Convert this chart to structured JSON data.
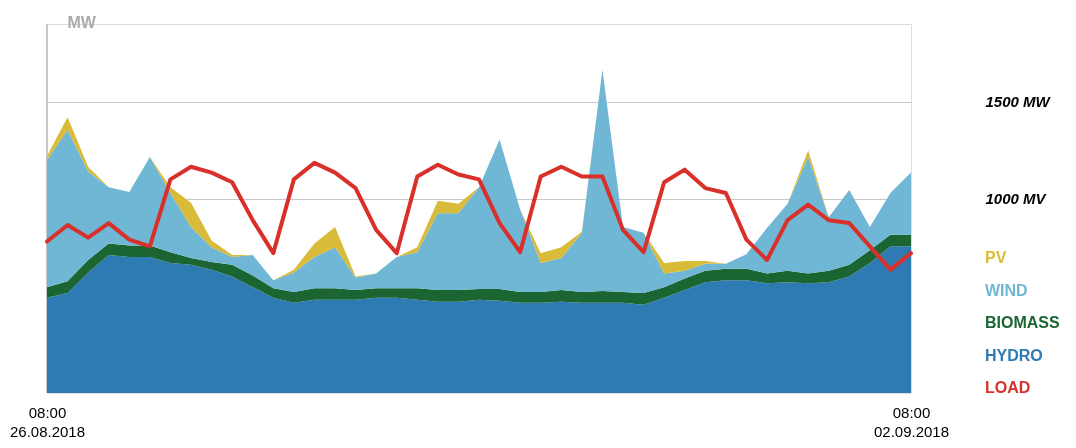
{
  "chart_data": {
    "type": "area",
    "stacked": true,
    "ylabel": "MW",
    "x": [
      "2018-08-26T08:00",
      "2018-08-26T12:00",
      "2018-08-26T16:00",
      "2018-08-26T20:00",
      "2018-08-27T00:00",
      "2018-08-27T04:00",
      "2018-08-27T08:00",
      "2018-08-27T12:00",
      "2018-08-27T16:00",
      "2018-08-27T20:00",
      "2018-08-28T00:00",
      "2018-08-28T04:00",
      "2018-08-28T08:00",
      "2018-08-28T12:00",
      "2018-08-28T16:00",
      "2018-08-28T20:00",
      "2018-08-29T00:00",
      "2018-08-29T04:00",
      "2018-08-29T08:00",
      "2018-08-29T12:00",
      "2018-08-29T16:00",
      "2018-08-29T20:00",
      "2018-08-30T00:00",
      "2018-08-30T04:00",
      "2018-08-30T08:00",
      "2018-08-30T12:00",
      "2018-08-30T16:00",
      "2018-08-30T20:00",
      "2018-08-31T00:00",
      "2018-08-31T04:00",
      "2018-08-31T08:00",
      "2018-08-31T12:00",
      "2018-08-31T16:00",
      "2018-08-31T20:00",
      "2018-09-01T00:00",
      "2018-09-01T04:00",
      "2018-09-01T08:00",
      "2018-09-01T12:00",
      "2018-09-01T16:00",
      "2018-09-01T20:00",
      "2018-09-02T00:00",
      "2018-09-02T04:00",
      "2018-09-02T08:00"
    ],
    "xlim": [
      "2018-08-26T08:00",
      "2018-09-02T08:00"
    ],
    "xticks": [
      {
        "value": "2018-08-26T08:00",
        "label": "08:00\n26.08.2018"
      },
      {
        "value": "2018-09-02T08:00",
        "label": "08:00\n02.09.2018"
      }
    ],
    "ylim": [
      0,
      1900
    ],
    "yticks": [
      {
        "value": 1000,
        "label": "1000 MV"
      },
      {
        "value": 1500,
        "label": "1500 MW"
      }
    ],
    "grid": "y",
    "legend": "right",
    "series": [
      {
        "name": "HYDRO",
        "color": "#2e7ab2",
        "values": [
          490,
          515,
          620,
          710,
          700,
          700,
          670,
          660,
          635,
          600,
          545,
          490,
          465,
          480,
          480,
          480,
          490,
          490,
          480,
          470,
          470,
          480,
          475,
          465,
          465,
          470,
          465,
          465,
          465,
          455,
          490,
          530,
          570,
          580,
          580,
          565,
          570,
          565,
          570,
          600,
          670,
          755,
          755
        ]
      },
      {
        "name": "BIOMASS",
        "color": "#1b6533",
        "values": [
          55,
          60,
          65,
          60,
          60,
          60,
          55,
          35,
          40,
          60,
          60,
          50,
          55,
          60,
          60,
          50,
          50,
          50,
          60,
          60,
          60,
          55,
          60,
          55,
          55,
          60,
          55,
          60,
          55,
          60,
          55,
          60,
          60,
          60,
          60,
          50,
          60,
          50,
          60,
          60,
          65,
          60,
          60
        ]
      },
      {
        "name": "WIND",
        "color": "#6fb7d4",
        "values": [
          655,
          780,
          455,
          290,
          275,
          455,
          305,
          160,
          75,
          40,
          105,
          40,
          100,
          160,
          210,
          65,
          75,
          160,
          185,
          395,
          395,
          525,
          770,
          425,
          150,
          165,
          305,
          1140,
          335,
          310,
          70,
          40,
          35,
          25,
          75,
          235,
          345,
          600,
          275,
          385,
          120,
          215,
          320
        ]
      },
      {
        "name": "PV",
        "color": "#d9bb3a",
        "values": [
          20,
          65,
          25,
          0,
          0,
          0,
          30,
          125,
          35,
          10,
          0,
          0,
          15,
          70,
          105,
          5,
          0,
          0,
          25,
          65,
          50,
          0,
          0,
          0,
          50,
          55,
          5,
          0,
          0,
          0,
          55,
          50,
          15,
          0,
          0,
          0,
          0,
          35,
          0,
          0,
          0,
          0,
          0
        ]
      },
      {
        "name": "LOAD",
        "type": "line",
        "color": "#d9302b",
        "values": [
          780,
          865,
          800,
          875,
          790,
          755,
          1100,
          1165,
          1135,
          1085,
          890,
          720,
          1100,
          1185,
          1135,
          1055,
          840,
          720,
          1115,
          1175,
          1125,
          1100,
          875,
          725,
          1115,
          1165,
          1115,
          1115,
          840,
          725,
          1085,
          1150,
          1055,
          1030,
          790,
          685,
          890,
          970,
          890,
          875,
          755,
          635,
          720
        ]
      }
    ]
  }
}
